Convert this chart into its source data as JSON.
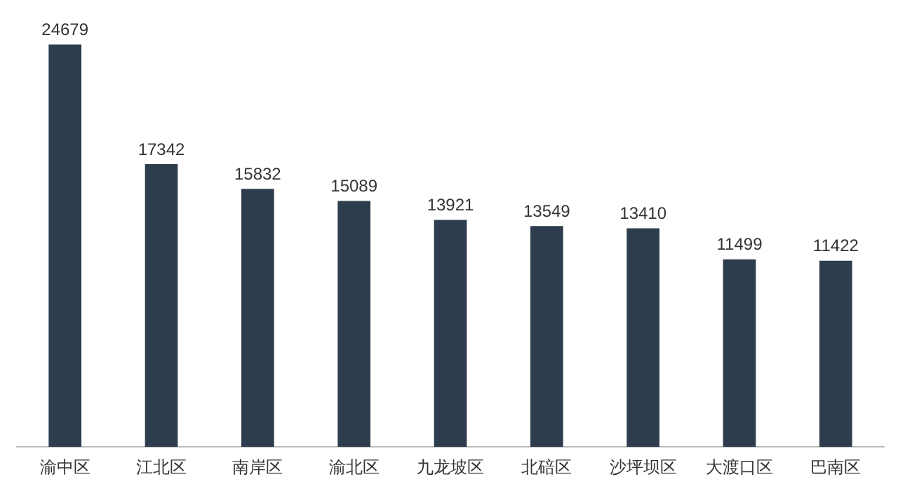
{
  "chart_data": {
    "type": "bar",
    "categories": [
      "渝中区",
      "江北区",
      "南岸区",
      "渝北区",
      "九龙坡区",
      "北碚区",
      "沙坪坝区",
      "大渡口区",
      "巴南区"
    ],
    "values": [
      24679,
      17342,
      15832,
      15089,
      13921,
      13549,
      13410,
      11499,
      11422
    ],
    "color": "#2e3d4d",
    "data_labels": true,
    "grid": false,
    "legend": false,
    "tick_labels": "x"
  }
}
